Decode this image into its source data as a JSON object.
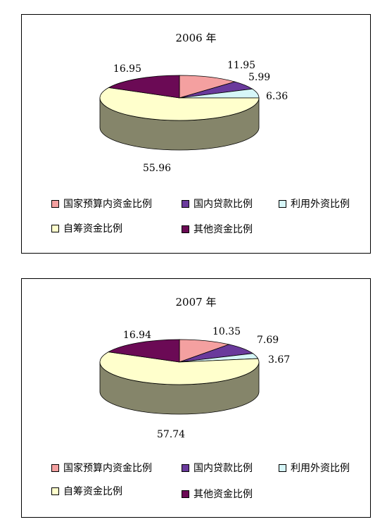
{
  "colors": {
    "national_budget": "#F4A0A0",
    "domestic_loans": "#6A3A9C",
    "foreign_investment": "#D6F6F8",
    "self_raised": "#FFFFCC",
    "other": "#6B0A55",
    "side": "#7A7A62"
  },
  "chart_data": [
    {
      "type": "pie",
      "title": "2006 年",
      "categories": [
        "国家预算内资金比例",
        "国内贷款比例",
        "利用外资比例",
        "自筹资金比例",
        "其他资金比例"
      ],
      "values": [
        11.95,
        5.99,
        6.36,
        55.96,
        16.95
      ],
      "data_labels": [
        "11.95",
        "5.99",
        "6.36",
        "55.96",
        "16.95"
      ],
      "legend": [
        "国家预算内资金比例",
        "国内贷款比例",
        "利用外资比例",
        "自筹资金比例",
        "其他资金比例"
      ]
    },
    {
      "type": "pie",
      "title": "2007 年",
      "categories": [
        "国家预算内资金比例",
        "国内贷款比例",
        "利用外资比例",
        "自筹资金比例",
        "其他资金比例"
      ],
      "values": [
        10.35,
        7.69,
        3.67,
        57.74,
        16.94
      ],
      "data_labels": [
        "10.35",
        "7.69",
        "3.67",
        "57.74",
        "16.94"
      ],
      "legend": [
        "国家预算内资金比例",
        "国内贷款比例",
        "利用外资比例",
        "自筹资金比例",
        "其他资金比例"
      ]
    }
  ]
}
